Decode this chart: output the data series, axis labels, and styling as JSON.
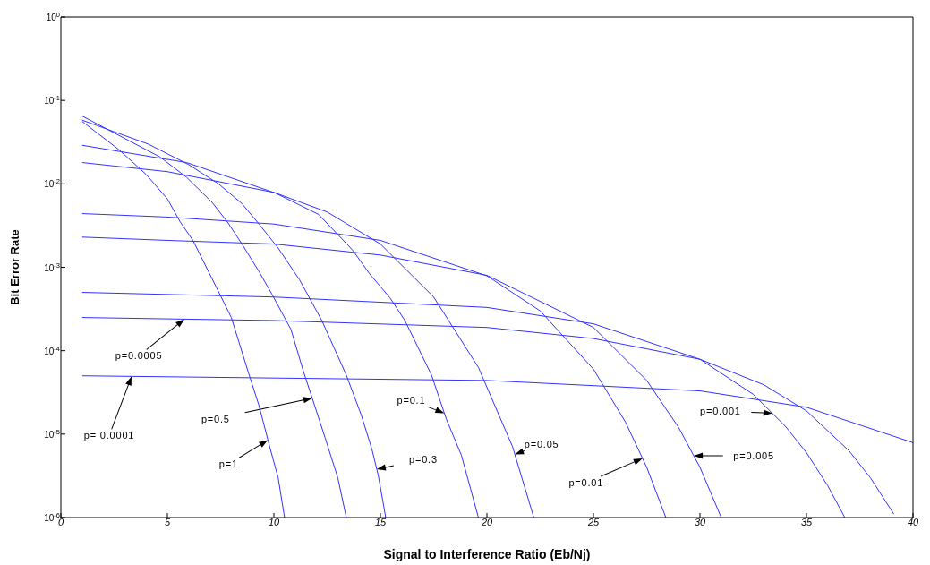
{
  "chart_data": {
    "type": "line",
    "xlabel": "Signal to Interference Ratio (Eb/Nj)",
    "ylabel": "Bit Error Rate",
    "log": "y",
    "marker": "none",
    "line_style": "solid",
    "xlim": [
      0,
      40
    ],
    "xticks": [
      0,
      5,
      10,
      15,
      20,
      25,
      30,
      35,
      40
    ],
    "ylim": [
      1e-06,
      1
    ],
    "yticks": [
      {
        "value": 1e-06,
        "label": "10$^{-6}$"
      },
      {
        "value": 1e-05,
        "label": "10$^{-5}$"
      },
      {
        "value": 0.0001,
        "label": "10$^{-4}$"
      },
      {
        "value": 0.001,
        "label": "10$^{-3}$"
      },
      {
        "value": 0.01,
        "label": "10$^{-2}$"
      },
      {
        "value": 0.1,
        "label": "10$^{-1}$"
      },
      {
        "value": 1,
        "label": "10$^{0}$"
      }
    ],
    "series": [
      {
        "color": "#3333ff",
        "x": [
          1,
          2.7,
          4,
          5,
          5.6,
          6.2,
          7.4,
          8,
          8.8,
          9.3,
          9.8,
          10.2,
          10.5
        ],
        "values": [
          0.056,
          0.026,
          0.013,
          0.0066,
          0.0035,
          0.0021,
          0.00051,
          0.00025,
          5.5e-05,
          2.2e-05,
          7.1e-06,
          3e-06,
          1e-06
        ]
      },
      {
        "color": "#3333ff",
        "x": [
          1,
          4.65,
          5.9,
          7.1,
          7.85,
          8.5,
          9.3,
          9.9,
          10.8,
          11.4,
          11.8,
          12.4,
          13,
          13.4
        ],
        "values": [
          0.065,
          0.021,
          0.012,
          0.006,
          0.0034,
          0.0019,
          0.00089,
          0.00048,
          0.00018,
          5.5e-05,
          2.7e-05,
          9.1e-06,
          3e-06,
          1e-06
        ]
      },
      {
        "color": "#3333ff",
        "x": [
          1,
          4.1,
          6,
          7.4,
          8.5,
          9.3,
          10.2,
          11.2,
          12.25,
          13.4,
          14.1,
          14.6,
          14.9,
          15.25
        ],
        "values": [
          0.058,
          0.03,
          0.017,
          0.01,
          0.0058,
          0.0033,
          0.0017,
          0.00071,
          0.00023,
          5.1e-05,
          1.7e-05,
          6.6e-06,
          3.2e-06,
          1e-06
        ]
      },
      {
        "color": "#3333ff",
        "x": [
          1,
          5.9,
          10.05,
          12.1,
          13.7,
          14.5,
          15.45,
          16.15,
          17.4,
          18.1,
          18.8,
          19.6
        ],
        "values": [
          0.029,
          0.018,
          0.0078,
          0.0043,
          0.0016,
          0.00083,
          0.00043,
          0.00023,
          5.1e-05,
          1.5e-05,
          5.6e-06,
          1e-06
        ]
      },
      {
        "color": "#3333ff",
        "x": [
          1,
          5,
          10,
          12.5,
          15,
          17.5,
          19.6,
          21.2,
          22.2
        ],
        "values": [
          0.018,
          0.014,
          0.0079,
          0.0046,
          0.0019,
          0.00044,
          6.3e-05,
          7.1e-06,
          1e-06
        ]
      },
      {
        "color": "#3333ff",
        "x": [
          1,
          5,
          10,
          15,
          20,
          22.5,
          25,
          26.5,
          27.5,
          28.4
        ],
        "values": [
          0.0044,
          0.004,
          0.0033,
          0.0021,
          0.00079,
          0.0003,
          6e-05,
          1.4e-05,
          4e-06,
          1e-06
        ]
      },
      {
        "color": "#3333ff",
        "x": [
          1,
          5,
          10,
          15,
          20,
          25,
          27.5,
          29,
          30,
          31
        ],
        "values": [
          0.0023,
          0.0021,
          0.0019,
          0.0014,
          0.0008,
          0.00019,
          4.4e-05,
          1.2e-05,
          4e-06,
          1e-06
        ]
      },
      {
        "color": "#3333ff",
        "x": [
          1,
          10,
          20,
          25,
          30,
          32.5,
          34,
          35,
          36,
          36.8
        ],
        "values": [
          0.0005,
          0.00044,
          0.00033,
          0.00021,
          7.9e-05,
          3e-05,
          1.25e-05,
          6e-06,
          2.4e-06,
          1e-06
        ]
      },
      {
        "color": "#3333ff",
        "x": [
          1,
          10,
          20,
          25,
          30,
          33,
          35,
          37,
          38,
          39.1
        ],
        "values": [
          0.00025,
          0.00023,
          0.00019,
          0.00014,
          7.9e-05,
          3.9e-05,
          1.9e-05,
          6.3e-06,
          3e-06,
          1.1e-06
        ]
      },
      {
        "color": "#3333ff",
        "x": [
          1,
          20,
          30,
          35,
          40
        ],
        "values": [
          5e-05,
          4.4e-05,
          3.3e-05,
          2.1e-05,
          7.9e-06
        ]
      }
    ],
    "annotations": [
      "p=1",
      "p=0.5",
      "p=0.3",
      "p=0.1",
      "p=0.05",
      "p=0.01",
      "p=0.005",
      "p=0.001",
      "p=0.0005",
      "p= 0.0001"
    ]
  }
}
